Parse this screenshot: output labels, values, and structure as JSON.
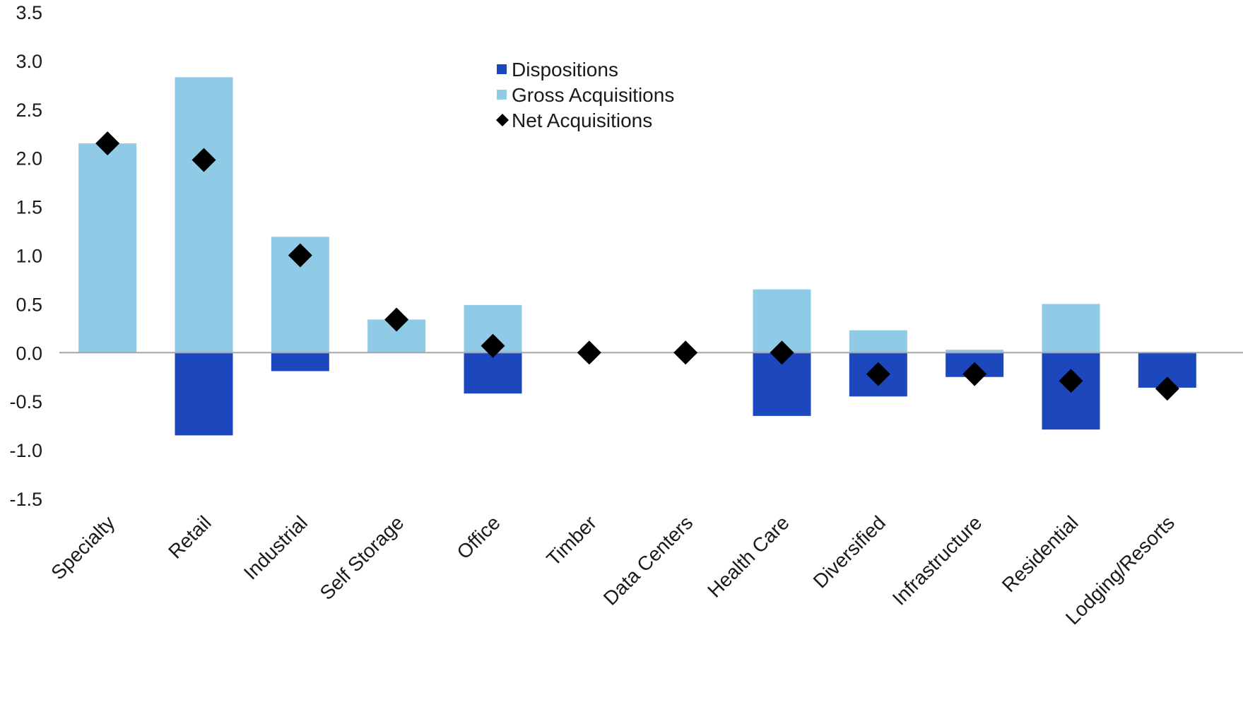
{
  "chart_data": {
    "type": "bar",
    "title": "",
    "xlabel": "",
    "ylabel": "",
    "ylim": [
      -1.5,
      3.5
    ],
    "yticks": [
      3.5,
      3.0,
      2.5,
      2.0,
      1.5,
      1.0,
      0.5,
      0.0,
      -0.5,
      -1.0,
      -1.5
    ],
    "ytick_labels": [
      "3.5",
      "3.0",
      "2.5",
      "2.0",
      "1.5",
      "1.0",
      "0.5",
      "0.0",
      "-0.5",
      "-1.0",
      "-1.5"
    ],
    "grid": false,
    "legend_position": "top-center",
    "categories": [
      "Specialty",
      "Retail",
      "Industrial",
      "Self Storage",
      "Office",
      "Timber",
      "Data Centers",
      "Health Care",
      "Diversified",
      "Infrastructure",
      "Residential",
      "Lodging/Resorts"
    ],
    "series": [
      {
        "name": "Dispositions",
        "kind": "bar",
        "color": "#1c47bd",
        "values": [
          0.0,
          -0.85,
          -0.19,
          0.0,
          -0.42,
          0.0,
          0.0,
          -0.65,
          -0.45,
          -0.25,
          -0.79,
          -0.36
        ]
      },
      {
        "name": "Gross Acquisitions",
        "kind": "bar",
        "color": "#8fcae6",
        "values": [
          2.15,
          2.83,
          1.19,
          0.34,
          0.49,
          0.0,
          0.0,
          0.65,
          0.23,
          0.03,
          0.5,
          0.0
        ]
      },
      {
        "name": "Net Acquisitions",
        "kind": "marker",
        "marker": "diamond",
        "color": "#000000",
        "values": [
          2.15,
          1.98,
          1.0,
          0.34,
          0.07,
          0.0,
          0.0,
          0.0,
          -0.22,
          -0.22,
          -0.29,
          -0.37
        ]
      }
    ]
  }
}
